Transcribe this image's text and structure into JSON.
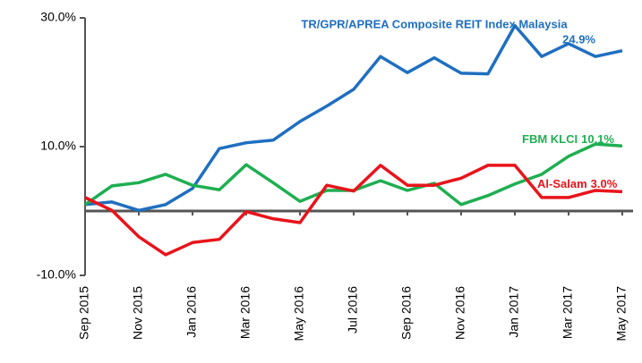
{
  "chart_data": {
    "type": "line",
    "categories": [
      "Sep 2015",
      null,
      "Nov 2015",
      null,
      "Jan 2016",
      null,
      "Mar 2016",
      null,
      "May 2016",
      null,
      "Jul 2016",
      null,
      "Sep 2016",
      null,
      "Nov 2016",
      null,
      "Jan 2017",
      null,
      "Mar 2017",
      null,
      "May 2017"
    ],
    "ylim": [
      -10,
      30
    ],
    "yticks": [
      {
        "value": -10,
        "label": "-10.0%"
      },
      {
        "value": 10,
        "label": "10.0%"
      },
      {
        "value": 30,
        "label": "30.0%"
      }
    ],
    "series": [
      {
        "name": "TR/GPR/APREA Composite REIT Index Malaysia",
        "color": "#1f6fc0",
        "values": [
          1.0,
          1.4,
          0.1,
          1.0,
          3.5,
          9.7,
          10.6,
          11.0,
          13.9,
          16.3,
          18.9,
          24.0,
          21.5,
          23.8,
          21.4,
          21.3,
          28.8,
          24.0,
          26.0,
          24.0,
          24.9
        ],
        "value_labels": [
          null,
          null,
          null,
          null,
          null,
          null,
          null,
          null,
          null,
          null,
          null,
          null,
          null,
          null,
          null,
          null,
          null,
          null,
          null,
          null,
          "24.9%"
        ]
      },
      {
        "name": "FBM KLCI",
        "color": "#1fae52",
        "values": [
          1.0,
          3.9,
          4.4,
          5.7,
          4.0,
          3.3,
          7.2,
          4.4,
          1.5,
          3.2,
          3.2,
          4.7,
          3.2,
          4.3,
          1.0,
          2.4,
          4.2,
          5.7,
          8.5,
          10.4,
          10.1
        ],
        "value_labels": [
          null,
          null,
          null,
          null,
          null,
          null,
          null,
          null,
          null,
          null,
          null,
          null,
          null,
          null,
          null,
          null,
          null,
          null,
          null,
          null,
          "10.1%"
        ]
      },
      {
        "name": "Al-Salam",
        "color": "#e8141b",
        "values": [
          2.1,
          0.1,
          -4.0,
          -6.8,
          -4.9,
          -4.4,
          -0.1,
          -1.2,
          -1.8,
          4.0,
          3.1,
          7.1,
          4.0,
          4.0,
          5.1,
          7.1,
          7.1,
          2.1,
          2.1,
          3.2,
          3.0
        ],
        "value_labels": [
          null,
          null,
          null,
          null,
          null,
          null,
          null,
          null,
          null,
          null,
          null,
          null,
          null,
          null,
          null,
          null,
          null,
          null,
          null,
          null,
          "3.0%"
        ]
      }
    ]
  }
}
